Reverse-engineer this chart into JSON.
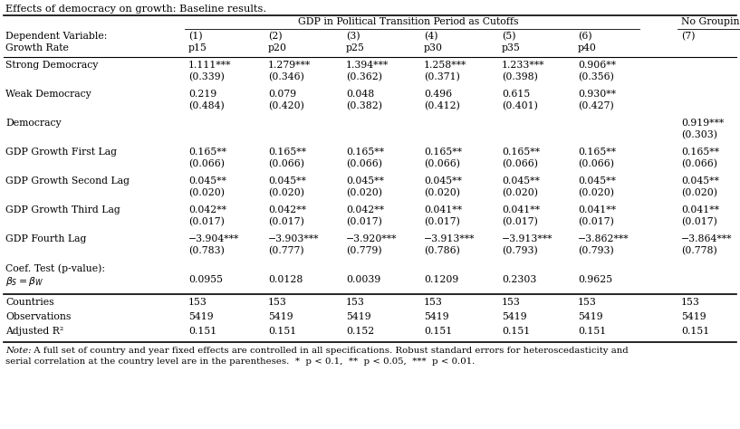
{
  "title": "Effects of democracy on growth: Baseline results.",
  "col_header_span": "GDP in Political Transition Period as Cutoffs",
  "col_header_no_group": "No Grouping",
  "subheader1": "Dependent Variable:",
  "subheader2": "Growth Rate",
  "col_nums": [
    "(1)",
    "(2)",
    "(3)",
    "(4)",
    "(5)",
    "(6)",
    "(7)"
  ],
  "col_ps": [
    "p15",
    "p20",
    "p25",
    "p30",
    "p35",
    "p40",
    ""
  ],
  "rows": [
    {
      "label": "Strong Democracy",
      "vals": [
        "1.111***",
        "1.279***",
        "1.394***",
        "1.258***",
        "1.233***",
        "0.906**",
        ""
      ],
      "se": [
        "(0.339)",
        "(0.346)",
        "(0.362)",
        "(0.371)",
        "(0.398)",
        "(0.356)",
        ""
      ]
    },
    {
      "label": "Weak Democracy",
      "vals": [
        "0.219",
        "0.079",
        "0.048",
        "0.496",
        "0.615",
        "0.930**",
        ""
      ],
      "se": [
        "(0.484)",
        "(0.420)",
        "(0.382)",
        "(0.412)",
        "(0.401)",
        "(0.427)",
        ""
      ]
    },
    {
      "label": "Democracy",
      "vals": [
        "",
        "",
        "",
        "",
        "",
        "",
        "0.919***"
      ],
      "se": [
        "",
        "",
        "",
        "",
        "",
        "",
        "(0.303)"
      ]
    },
    {
      "label": "GDP Growth First Lag",
      "vals": [
        "0.165**",
        "0.165**",
        "0.165**",
        "0.165**",
        "0.165**",
        "0.165**",
        "0.165**"
      ],
      "se": [
        "(0.066)",
        "(0.066)",
        "(0.066)",
        "(0.066)",
        "(0.066)",
        "(0.066)",
        "(0.066)"
      ]
    },
    {
      "label": "GDP Growth Second Lag",
      "vals": [
        "0.045**",
        "0.045**",
        "0.045**",
        "0.045**",
        "0.045**",
        "0.045**",
        "0.045**"
      ],
      "se": [
        "(0.020)",
        "(0.020)",
        "(0.020)",
        "(0.020)",
        "(0.020)",
        "(0.020)",
        "(0.020)"
      ]
    },
    {
      "label": "GDP Growth Third Lag",
      "vals": [
        "0.042**",
        "0.042**",
        "0.042**",
        "0.041**",
        "0.041**",
        "0.041**",
        "0.041**"
      ],
      "se": [
        "(0.017)",
        "(0.017)",
        "(0.017)",
        "(0.017)",
        "(0.017)",
        "(0.017)",
        "(0.017)"
      ]
    },
    {
      "label": "GDP Fourth Lag",
      "vals": [
        "−3.904***",
        "−3.903***",
        "−3.920***",
        "−3.913***",
        "−3.913***",
        "−3.862***",
        "−3.864***"
      ],
      "se": [
        "(0.783)",
        "(0.777)",
        "(0.779)",
        "(0.786)",
        "(0.793)",
        "(0.793)",
        "(0.778)"
      ]
    }
  ],
  "coef_label1": "Coef. Test (p-value):",
  "coef_vals": [
    "0.0955",
    "0.0128",
    "0.0039",
    "0.1209",
    "0.2303",
    "0.9625",
    ""
  ],
  "bottom_rows": [
    {
      "label": "Countries",
      "vals": [
        "153",
        "153",
        "153",
        "153",
        "153",
        "153",
        "153"
      ]
    },
    {
      "label": "Observations",
      "vals": [
        "5419",
        "5419",
        "5419",
        "5419",
        "5419",
        "5419",
        "5419"
      ]
    },
    {
      "label": "Adjusted R²",
      "vals": [
        "0.151",
        "0.151",
        "0.152",
        "0.151",
        "0.151",
        "0.151",
        "0.151"
      ]
    }
  ],
  "note_italic": "Note:",
  "note_rest": " A full set of country and year fixed effects are controlled in all specifications. Robust standard errors for heteroscedasticity and",
  "note_line2": "serial correlation at the country level are in the parentheses.  *  p < 0.1,  **  p < 0.05,  ***  p < 0.01.",
  "bg_color": "#ffffff",
  "text_color": "#000000",
  "fs": 7.8,
  "title_fs": 8.2
}
